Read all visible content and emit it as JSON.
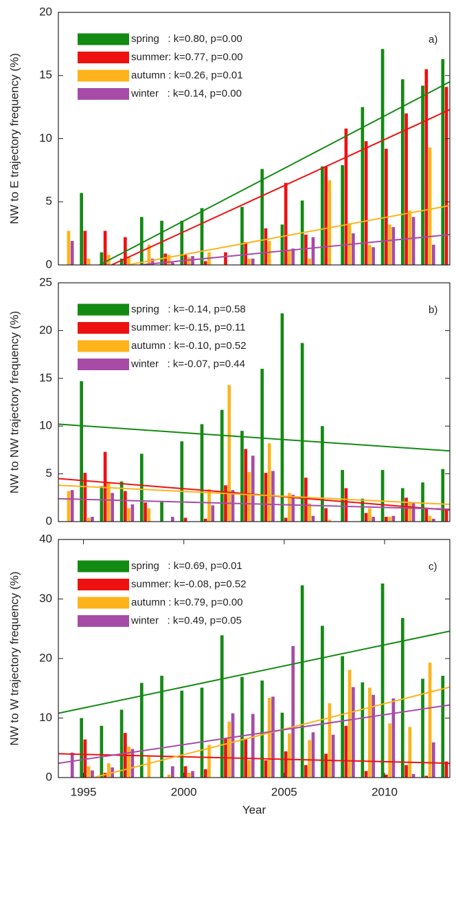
{
  "chart_data": [
    {
      "type": "bar",
      "panel_label": "a)",
      "ylabel": "NW to E trajectory frequency (%)",
      "x": [
        1994,
        1995,
        1996,
        1997,
        1998,
        1999,
        2000,
        2001,
        2002,
        2003,
        2004,
        2005,
        2006,
        2007,
        2008,
        2009,
        2010,
        2011,
        2012,
        2013
      ],
      "xlim": [
        1993.75,
        2013.25
      ],
      "ylim": [
        0,
        20
      ],
      "yticks": [
        0,
        5,
        10,
        15,
        20
      ],
      "series": [
        {
          "name": "spring   : k=0.80, p=0.00",
          "color": "#138a13",
          "values": [
            0,
            5.7,
            1.0,
            0.5,
            3.8,
            3.5,
            3.5,
            4.5,
            0,
            4.6,
            7.6,
            3.2,
            5.1,
            7.8,
            7.9,
            12.5,
            17.1,
            14.7,
            14.2,
            16.3
          ],
          "trend_x": [
            1995.8,
            2013.25
          ],
          "trend_y": [
            0,
            14.5
          ]
        },
        {
          "name": "summer: k=0.77, p=0.00",
          "color": "#ee1111",
          "values": [
            0,
            2.7,
            2.7,
            2.2,
            0,
            0.9,
            0.8,
            0.3,
            1.0,
            1.8,
            2.9,
            6.5,
            2.4,
            7.8,
            10.8,
            9.8,
            9.2,
            12.0,
            15.5,
            14.1
          ],
          "trend_x": [
            1996.4,
            2013.25
          ],
          "trend_y": [
            0,
            12.3
          ]
        },
        {
          "name": "autumn : k=0.26, p=0.01",
          "color": "#ffb31a",
          "values": [
            2.7,
            0.5,
            0.8,
            0.6,
            1.6,
            0.8,
            0.6,
            1.0,
            0,
            0.5,
            1.9,
            1.1,
            0.5,
            6.7,
            3.3,
            1.6,
            3.2,
            4.3,
            9.3,
            null
          ],
          "trend_x": [
            1997.2,
            2013.25
          ],
          "trend_y": [
            0,
            4.7
          ]
        },
        {
          "name": "winter   : k=0.14, p=0.00",
          "color": "#a64ca6",
          "values": [
            1.9,
            0,
            0,
            0,
            0.5,
            0.2,
            0.7,
            0,
            0,
            0.5,
            0,
            1.3,
            2.2,
            0,
            2.5,
            1.4,
            3.0,
            3.8,
            1.6,
            null
          ],
          "trend_x": [
            1997.8,
            2013.25
          ],
          "trend_y": [
            0,
            2.4
          ]
        }
      ]
    },
    {
      "type": "bar",
      "panel_label": "b)",
      "ylabel": "NW to NW trajectory frequency (%)",
      "x": [
        1994,
        1995,
        1996,
        1997,
        1998,
        1999,
        2000,
        2001,
        2002,
        2003,
        2004,
        2005,
        2006,
        2007,
        2008,
        2009,
        2010,
        2011,
        2012,
        2013
      ],
      "xlim": [
        1993.75,
        2013.25
      ],
      "ylim": [
        0,
        25
      ],
      "yticks": [
        0,
        5,
        10,
        15,
        20,
        25
      ],
      "series": [
        {
          "name": "spring   : k=-0.14, p=0.58",
          "color": "#138a13",
          "values": [
            0,
            14.7,
            3.7,
            4.2,
            7.1,
            2.1,
            8.4,
            10.2,
            11.7,
            9.5,
            16.0,
            21.8,
            18.7,
            10.0,
            5.4,
            2.4,
            5.4,
            3.5,
            4.1,
            5.5
          ],
          "trend_x": [
            1993.75,
            2013.25
          ],
          "trend_y": [
            10.2,
            7.4
          ]
        },
        {
          "name": "summer: k=-0.15, p=0.11",
          "color": "#ee1111",
          "values": [
            0,
            5.1,
            7.3,
            3.2,
            2.0,
            0,
            0.4,
            0.3,
            3.8,
            7.6,
            5.1,
            0.4,
            4.6,
            1.4,
            3.5,
            0.9,
            0.5,
            2.5,
            1.3,
            1.3
          ],
          "trend_x": [
            1993.75,
            2013.25
          ],
          "trend_y": [
            4.5,
            1.2
          ]
        },
        {
          "name": "autumn : k=-0.10, p=0.52",
          "color": "#ffb31a",
          "values": [
            3.2,
            0.4,
            4.1,
            1.4,
            1.4,
            0,
            0,
            3.4,
            14.3,
            5.2,
            8.2,
            3.0,
            1.9,
            0.2,
            0,
            1.4,
            0.5,
            2.0,
            0.6,
            null
          ],
          "trend_x": [
            1993.75,
            2013.25
          ],
          "trend_y": [
            3.8,
            1.8
          ]
        },
        {
          "name": "winter   : k=-0.07, p=0.44",
          "color": "#a64ca6",
          "values": [
            3.3,
            0.5,
            3.0,
            1.8,
            0,
            0.5,
            0,
            1.7,
            3.3,
            6.9,
            5.3,
            2.8,
            0.6,
            0,
            0,
            0.5,
            0.6,
            2.0,
            0.3,
            null
          ],
          "trend_x": [
            1993.75,
            2013.25
          ],
          "trend_y": [
            2.4,
            1.3
          ]
        }
      ]
    },
    {
      "type": "bar",
      "panel_label": "c)",
      "ylabel": "NW to W trajectory frequency (%)",
      "xlabel": "Year",
      "x": [
        1994,
        1995,
        1996,
        1997,
        1998,
        1999,
        2000,
        2001,
        2002,
        2003,
        2004,
        2005,
        2006,
        2007,
        2008,
        2009,
        2010,
        2011,
        2012,
        2013
      ],
      "xlim": [
        1993.75,
        2013.25
      ],
      "xticks": [
        1995,
        2000,
        2005,
        2010
      ],
      "ylim": [
        0,
        40
      ],
      "yticks": [
        0,
        10,
        20,
        30,
        40
      ],
      "series": [
        {
          "name": "spring   : k=0.69, p=0.01",
          "color": "#138a13",
          "values": [
            0,
            10.0,
            8.7,
            11.4,
            15.9,
            17.1,
            14.6,
            15.1,
            23.9,
            16.9,
            16.3,
            10.9,
            32.3,
            25.5,
            20.4,
            16.0,
            32.6,
            26.8,
            16.6,
            17.1
          ],
          "trend_x": [
            1993.75,
            2013.25
          ],
          "trend_y": [
            10.8,
            24.6
          ]
        },
        {
          "name": "summer: k=-0.08, p=0.52",
          "color": "#ee1111",
          "values": [
            0,
            6.4,
            0.8,
            7.5,
            0,
            0,
            1.9,
            1.4,
            6.5,
            6.5,
            2.9,
            4.4,
            2.1,
            4.0,
            8.7,
            1.1,
            0.5,
            2.1,
            0.3,
            2.7
          ],
          "trend_x": [
            1993.75,
            2013.25
          ],
          "trend_y": [
            4.0,
            2.4
          ]
        },
        {
          "name": "autumn : k=0.79, p=0.00",
          "color": "#ffb31a",
          "values": [
            0,
            1.9,
            2.4,
            5.2,
            3.5,
            0.5,
            0.8,
            5.5,
            9.4,
            2.9,
            13.4,
            7.4,
            6.3,
            12.5,
            18.1,
            15.1,
            9.1,
            8.5,
            19.3,
            null
          ],
          "trend_x": [
            1995.5,
            2013.25
          ],
          "trend_y": [
            0,
            15.2
          ]
        },
        {
          "name": "winter   : k=0.49, p=0.05",
          "color": "#a64ca6",
          "values": [
            4.2,
            1.2,
            1.7,
            4.8,
            0,
            1.9,
            1.1,
            0,
            10.8,
            10.7,
            13.6,
            22.1,
            7.6,
            7.2,
            15.2,
            13.9,
            13.3,
            0.6,
            5.9,
            null
          ],
          "trend_x": [
            1993.75,
            2013.25
          ],
          "trend_y": [
            2.4,
            12.2
          ]
        }
      ]
    }
  ]
}
